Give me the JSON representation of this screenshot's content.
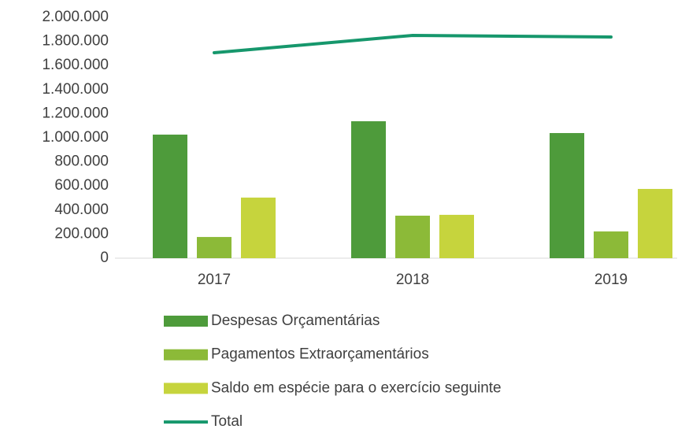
{
  "chart_data": {
    "type": "bar",
    "categories": [
      "2017",
      "2018",
      "2019"
    ],
    "series": [
      {
        "name": "Despesas Orçamentárias",
        "color": "#4e9b3b",
        "values": [
          1026000,
          1137000,
          1039000
        ]
      },
      {
        "name": "Pagamentos Extraorçamentários",
        "color": "#8cba38",
        "values": [
          176000,
          353000,
          222000
        ]
      },
      {
        "name": "Saldo em espécie para o exercício seguinte",
        "color": "#c6d43d",
        "values": [
          503000,
          360000,
          575000
        ]
      },
      {
        "name": "Total",
        "color": "#16976c",
        "type": "line",
        "values": [
          1706000,
          1850000,
          1837000
        ]
      }
    ],
    "ylim": [
      0,
      2000000
    ],
    "yticks": [
      0,
      {
        "value": 200000,
        "label": "200.000"
      },
      {
        "value": 400000,
        "label": "400.000"
      },
      {
        "value": 600000,
        "label": "600.000"
      },
      {
        "value": 800000,
        "label": "800.000"
      },
      {
        "value": 1000000,
        "label": "1.000.000"
      },
      {
        "value": 1200000,
        "label": "1.200.000"
      },
      {
        "value": 1400000,
        "label": "1.400.000"
      },
      {
        "value": 1600000,
        "label": "1.600.000"
      },
      {
        "value": 1800000,
        "label": "1.800.000"
      },
      {
        "value": 2000000,
        "label": "2.000.000"
      }
    ],
    "grid": false,
    "legend": "bottom"
  }
}
